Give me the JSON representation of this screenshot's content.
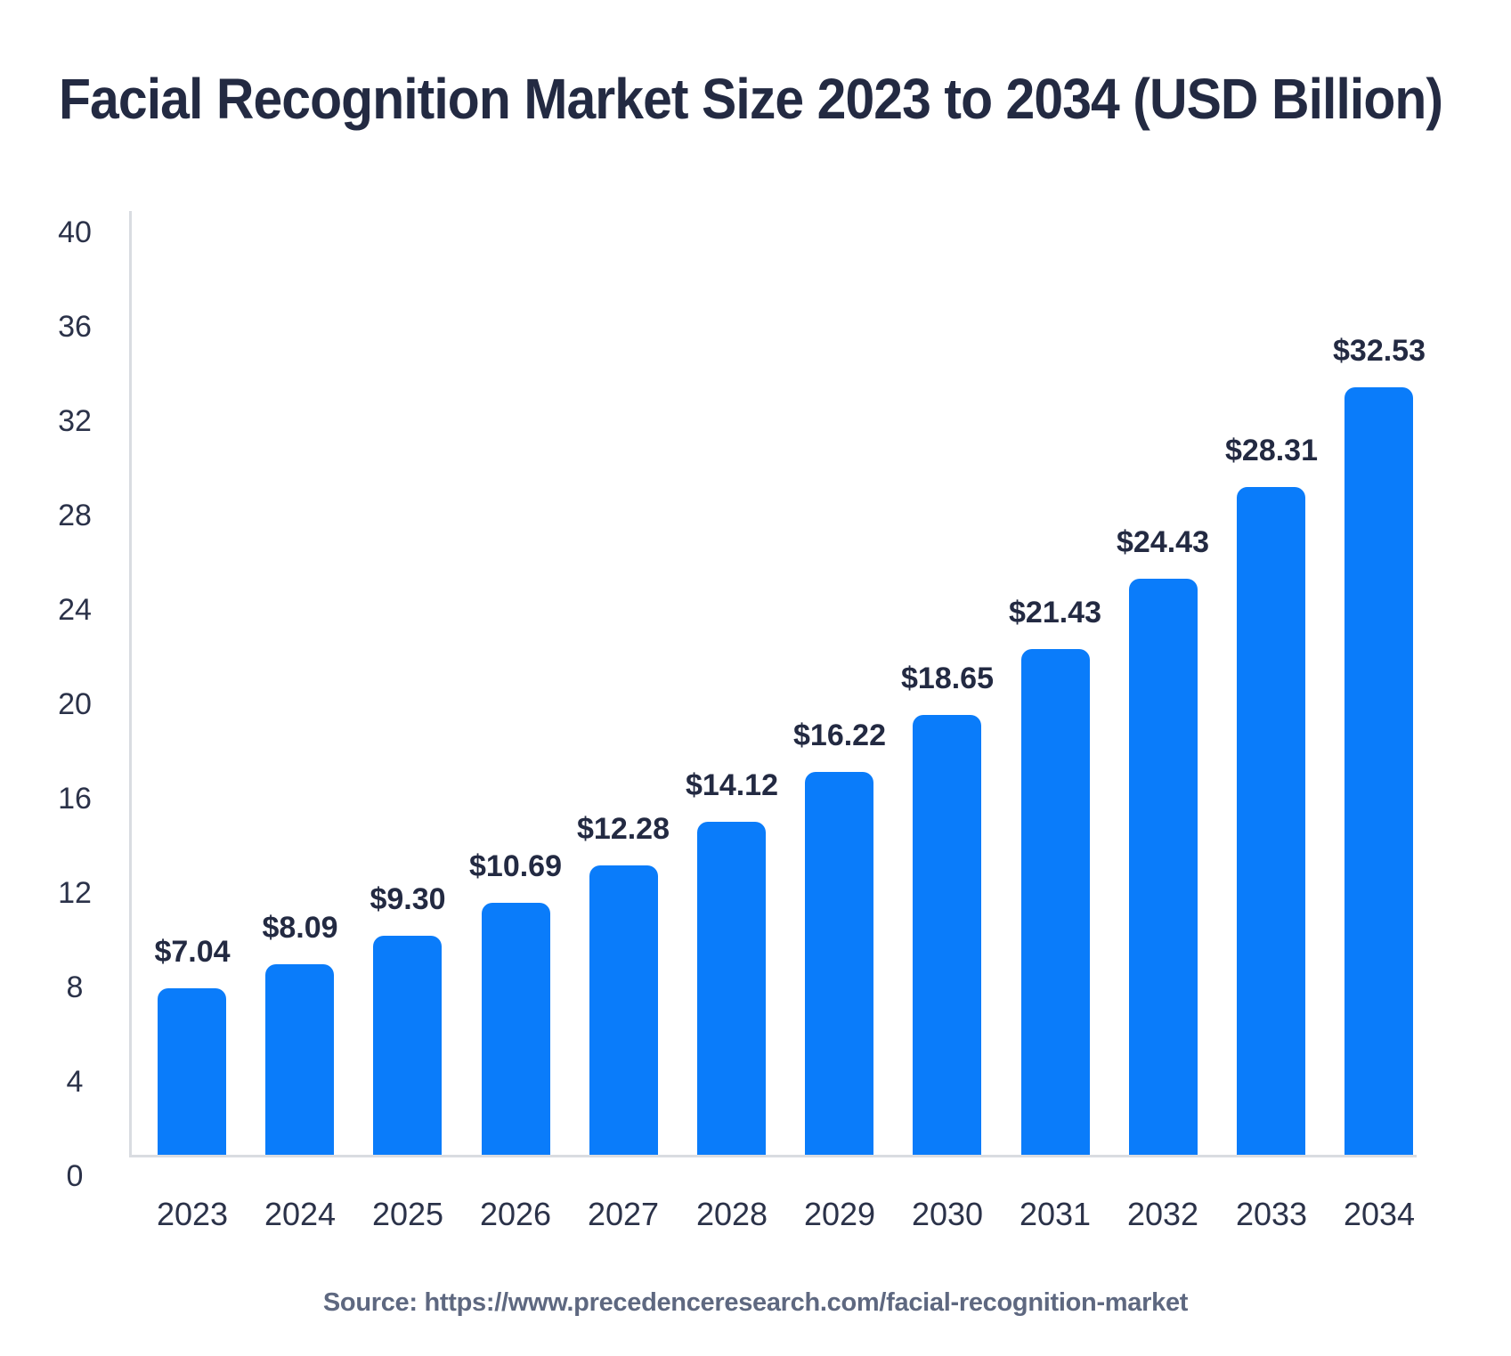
{
  "page": {
    "title": "Facial Recognition Market Size 2023 to 2034 (USD Billion)",
    "source": "Source: https://www.precedenceresearch.com/facial-recognition-market"
  },
  "colors": {
    "bar": "#0A7CFA",
    "title_text": "#232A42",
    "tick_text": "#2B3249",
    "value_label_text": "#232A42",
    "axis_line": "#D9DCE1",
    "source_text": "#5E6880",
    "background": "#FFFFFF"
  },
  "chart_data": {
    "type": "bar",
    "title": "Facial Recognition Market Size 2023 to 2034 (USD Billion)",
    "series_name": "Facial Recognition Market Size (USD Billion)",
    "categories": [
      "2023",
      "2024",
      "2025",
      "2026",
      "2027",
      "2028",
      "2029",
      "2030",
      "2031",
      "2032",
      "2033",
      "2034"
    ],
    "values": [
      7.04,
      8.09,
      9.3,
      10.69,
      12.28,
      14.12,
      16.22,
      18.65,
      21.43,
      24.43,
      28.31,
      32.53
    ],
    "value_labels": [
      "$7.04",
      "$8.09",
      "$9.30",
      "$10.69",
      "$12.28",
      "$14.12",
      "$16.22",
      "$18.65",
      "$21.43",
      "$24.43",
      "$28.31",
      "$32.53"
    ],
    "xlabel": "",
    "ylabel": "",
    "ylim": [
      0,
      40
    ],
    "yticks": [
      0,
      4,
      8,
      12,
      16,
      20,
      24,
      28,
      32,
      36,
      40
    ],
    "grid": false,
    "legend": false,
    "source": "Source: https://www.precedenceresearch.com/facial-recognition-market"
  }
}
